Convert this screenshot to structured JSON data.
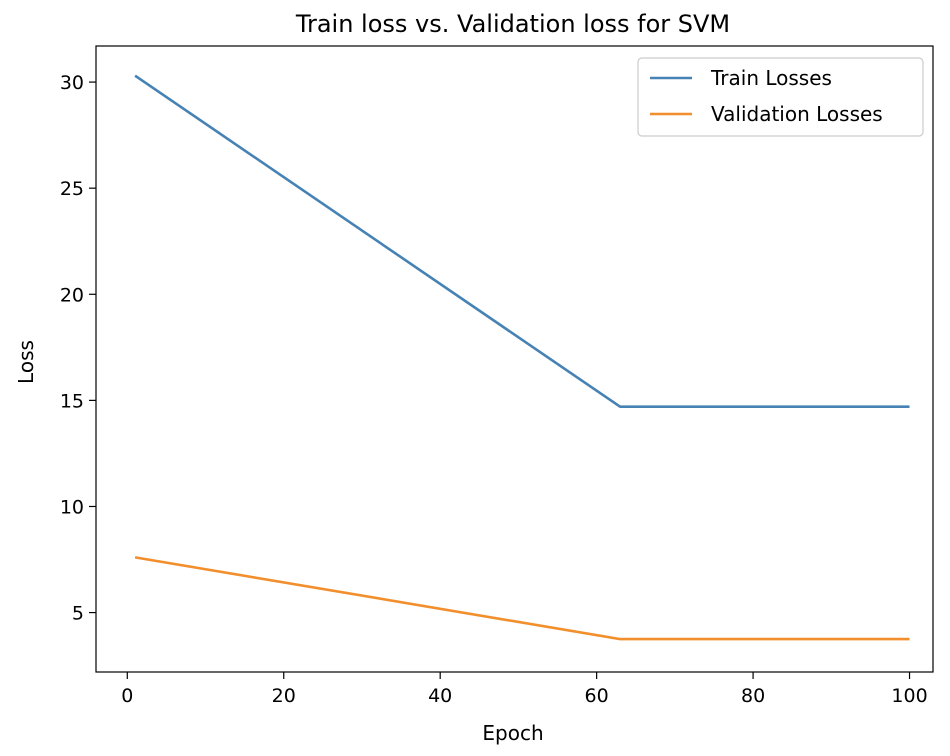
{
  "chart_data": {
    "type": "line",
    "title": "Train loss vs. Validation loss for SVM",
    "xlabel": "Epoch",
    "ylabel": "Loss",
    "xlim": [
      -4,
      103
    ],
    "ylim": [
      2.2,
      31.7
    ],
    "xticks": [
      0,
      20,
      40,
      60,
      80,
      100
    ],
    "yticks": [
      5,
      10,
      15,
      20,
      25,
      30
    ],
    "grid": false,
    "legend_position": "top-right",
    "series": [
      {
        "name": "Train Losses",
        "color": "#4682b4",
        "x": [
          1,
          63,
          100
        ],
        "y": [
          30.3,
          14.7,
          14.7
        ]
      },
      {
        "name": "Validation Losses",
        "color": "#f28e2b",
        "x": [
          1,
          63,
          100
        ],
        "y": [
          7.6,
          3.75,
          3.75
        ]
      }
    ]
  }
}
